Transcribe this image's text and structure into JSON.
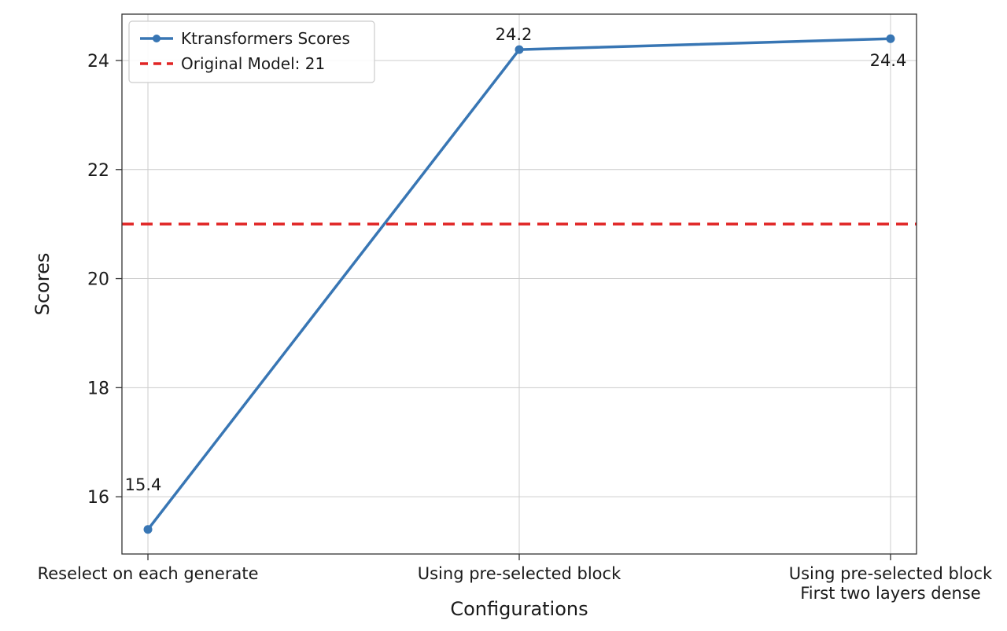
{
  "figure": {
    "background": "#ffffff"
  },
  "chart_data": {
    "type": "line",
    "title": "",
    "xlabel": "Configurations",
    "ylabel": "Scores",
    "categories": [
      "Reselect on each generate",
      "Using pre-selected block",
      "Using pre-selected block\nFirst two layers dense"
    ],
    "series": [
      {
        "name": "Ktransformers Scores",
        "values": [
          15.4,
          24.2,
          24.4
        ],
        "color": "#3876b4",
        "marker": "circle",
        "line_style": "solid"
      }
    ],
    "reference_line": {
      "label": "Original Model: 21",
      "value": 21,
      "color": "#e02525",
      "line_style": "dashed"
    },
    "point_labels": [
      "15.4",
      "24.2",
      "24.4"
    ],
    "yticks": [
      "16",
      "18",
      "20",
      "22",
      "24"
    ],
    "ytick_values": [
      16,
      18,
      20,
      22,
      24
    ],
    "ylim": [
      14.95,
      24.85
    ],
    "grid": true,
    "grid_color": "#cccccc",
    "axis_color": "#333333",
    "legend_position": "upper-left",
    "legend_entries": [
      "Ktransformers Scores",
      "Original Model: 21"
    ]
  }
}
